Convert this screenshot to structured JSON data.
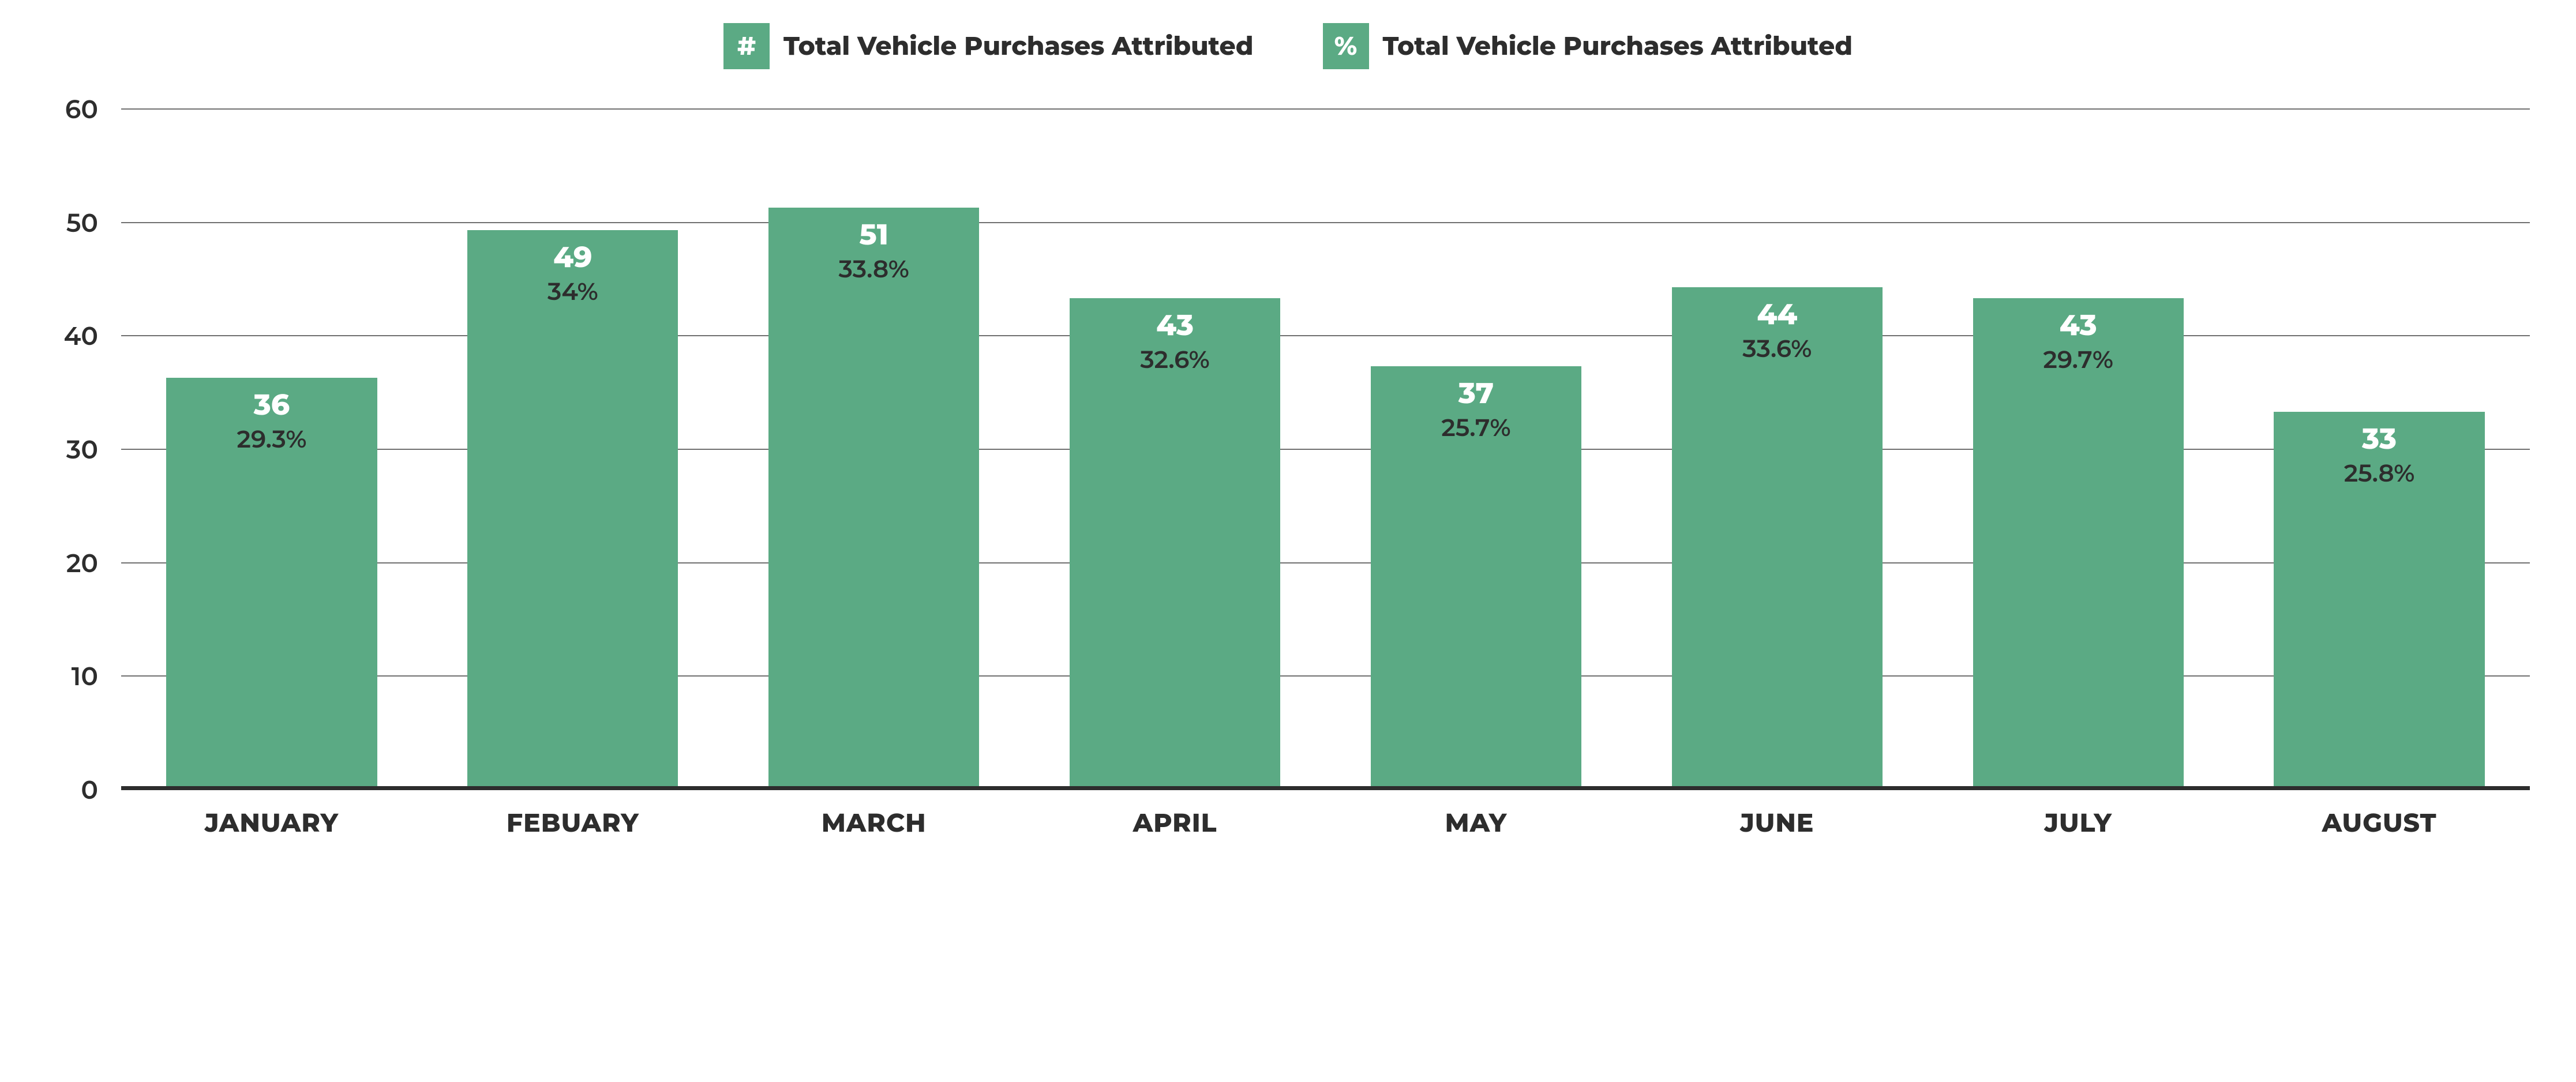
{
  "chart": {
    "type": "bar",
    "background_color": "#ffffff",
    "grid_color": "#6f6f6f",
    "baseline_color": "#2d2d2d",
    "text_color": "#2d2d2d",
    "bar_color": "#5baa84",
    "count_label_color": "#ffffff",
    "pct_label_color": "#2d2d2d",
    "legend_label_fontsize": 44,
    "legend_label_fontweight": 800,
    "axis_fontsize": 44,
    "axis_fontweight": 600,
    "count_fontsize": 50,
    "count_fontweight": 800,
    "pct_fontsize": 42,
    "pct_fontweight": 600,
    "bar_width_ratio": 0.7,
    "ylim": [
      0,
      60
    ],
    "ytick_step": 10,
    "yticks": [
      0,
      10,
      20,
      30,
      40,
      50,
      60
    ],
    "legend": [
      {
        "symbol": "#",
        "label": "Total Vehicle Purchases Attributed",
        "swatch_color": "#5baa84"
      },
      {
        "symbol": "%",
        "label": "Total Vehicle Purchases Attributed",
        "swatch_color": "#5baa84"
      }
    ],
    "categories": [
      "JANUARY",
      "FEBUARY",
      "MARCH",
      "APRIL",
      "MAY",
      "JUNE",
      "JULY",
      "AUGUST"
    ],
    "data": [
      {
        "month": "JANUARY",
        "count": 36,
        "pct": "29.3%"
      },
      {
        "month": "FEBUARY",
        "count": 49,
        "pct": "34%"
      },
      {
        "month": "MARCH",
        "count": 51,
        "pct": "33.8%"
      },
      {
        "month": "APRIL",
        "count": 43,
        "pct": "32.6%"
      },
      {
        "month": "MAY",
        "count": 37,
        "pct": "25.7%"
      },
      {
        "month": "JUNE",
        "count": 44,
        "pct": "33.6%"
      },
      {
        "month": "JULY",
        "count": 43,
        "pct": "29.7%"
      },
      {
        "month": "AUGUST",
        "count": 33,
        "pct": "25.8%"
      }
    ]
  }
}
